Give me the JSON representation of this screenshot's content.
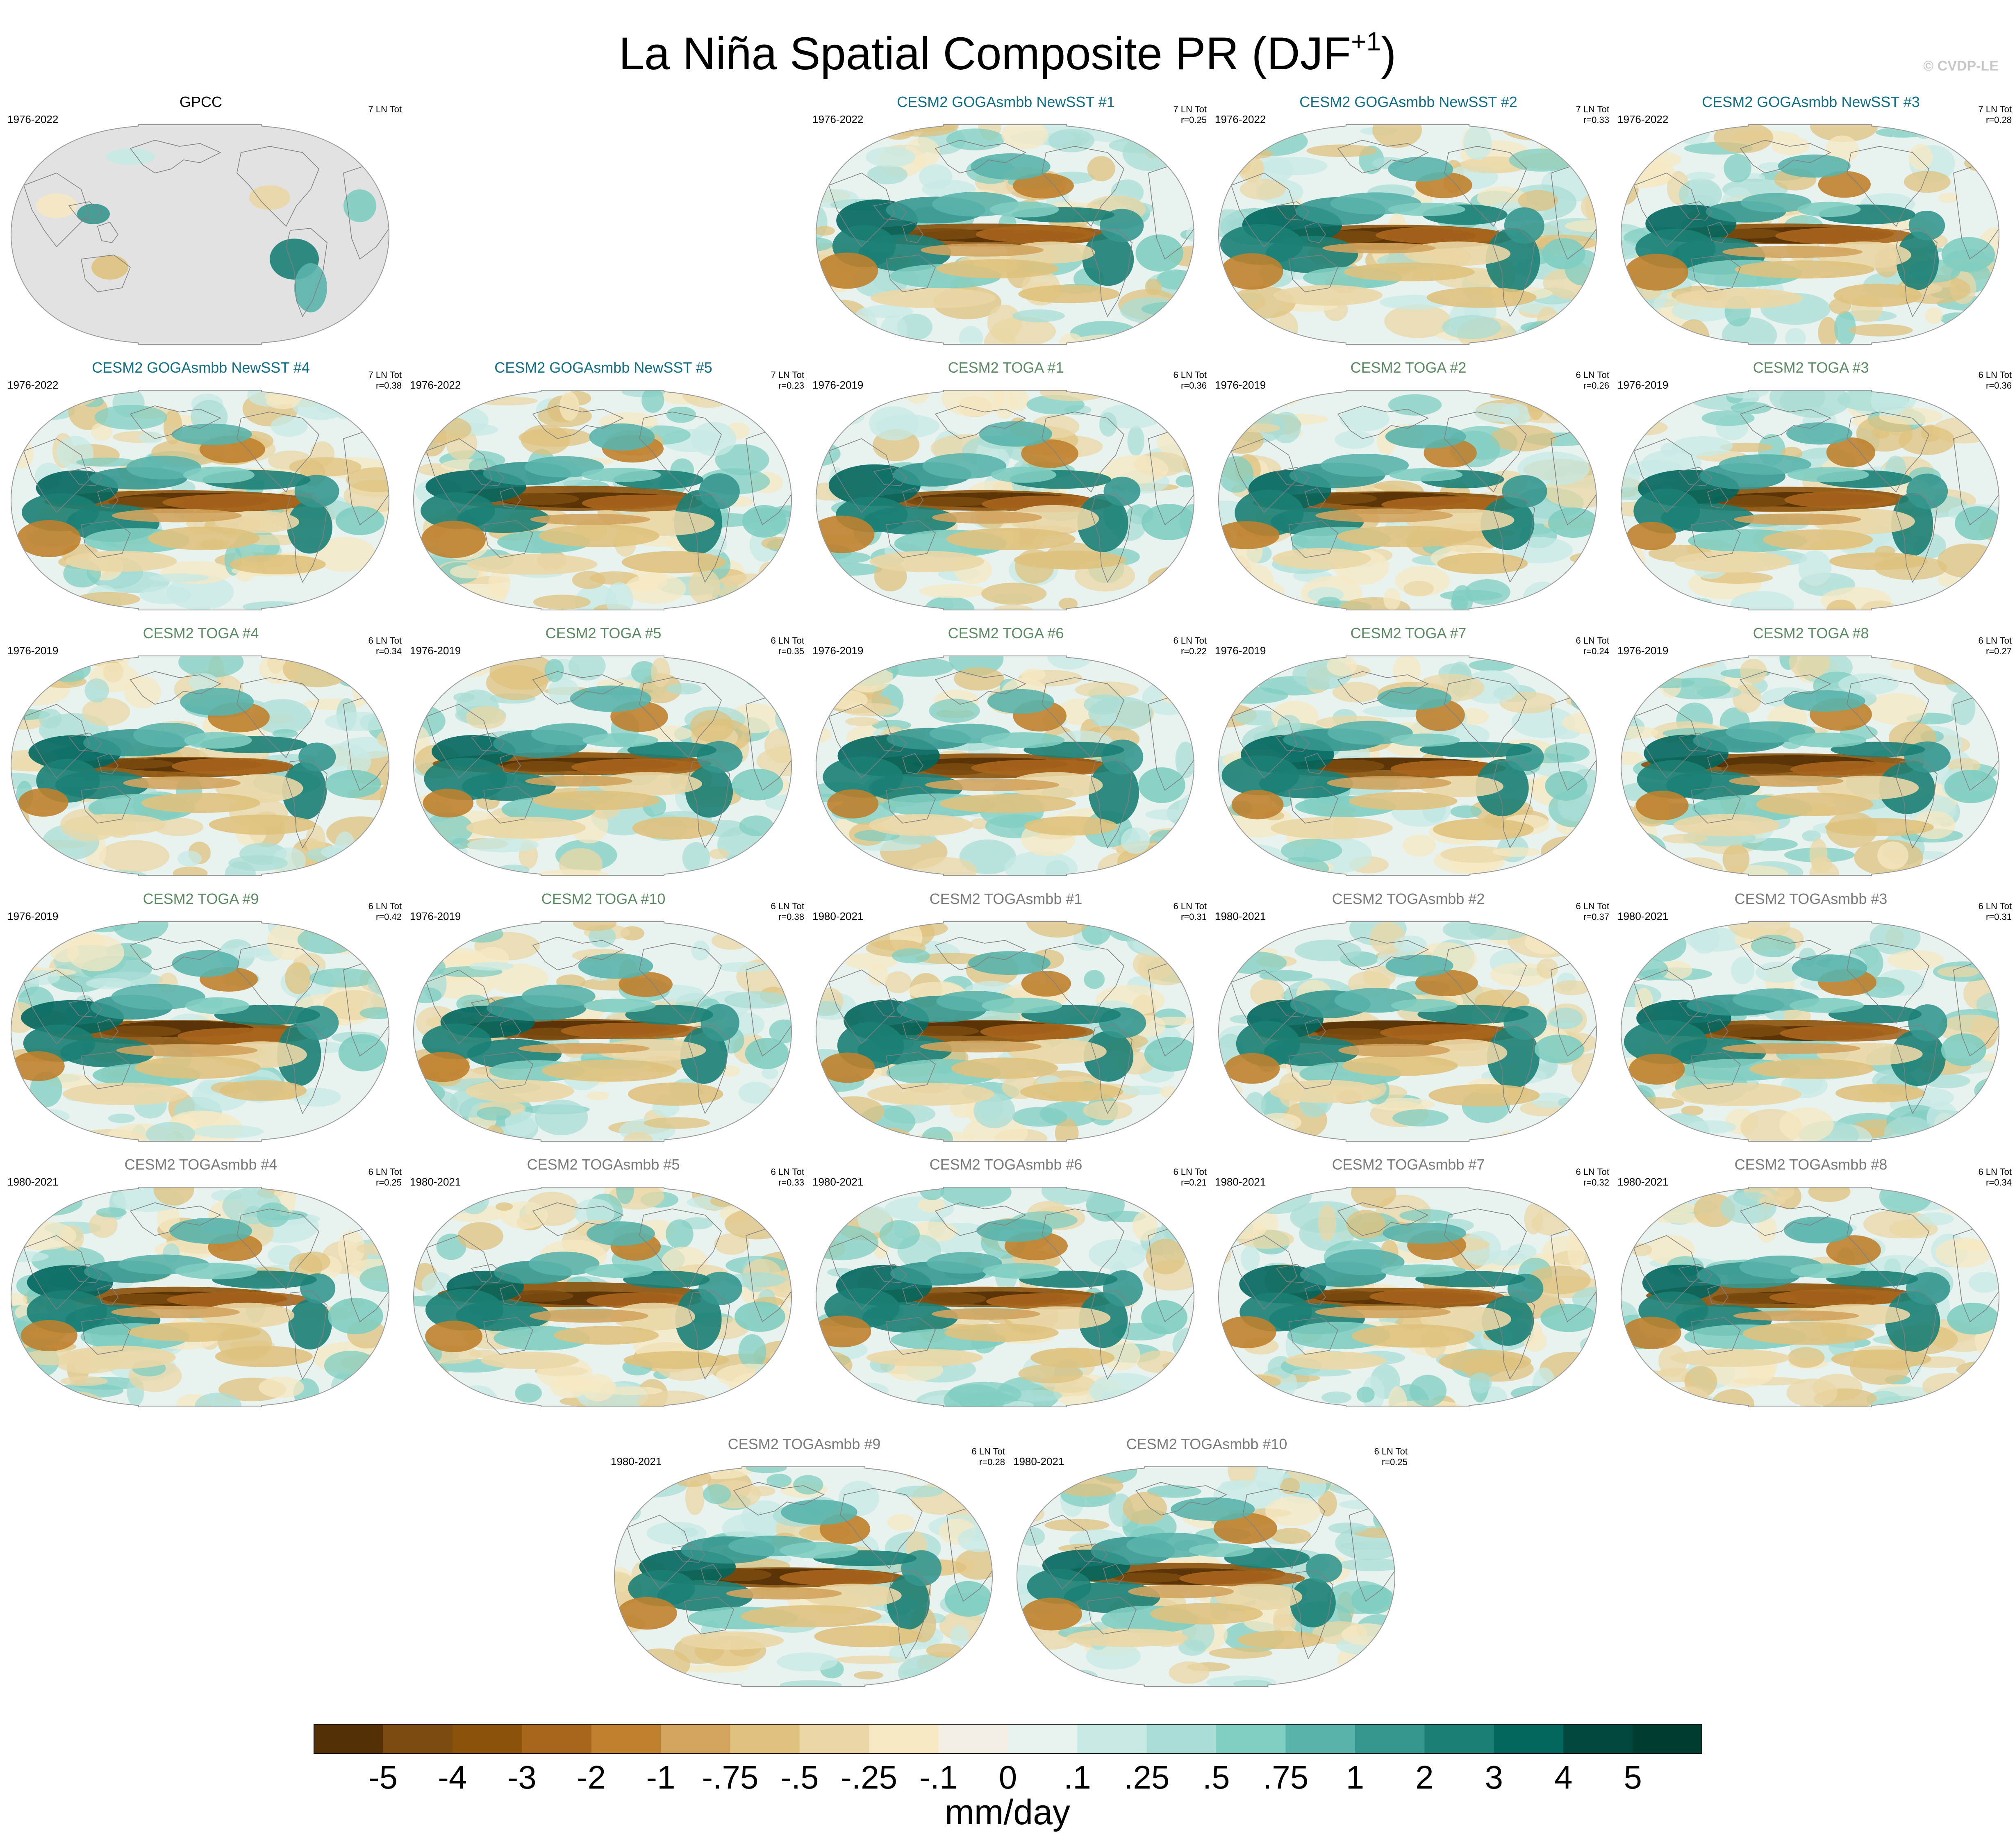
{
  "figure": {
    "title_main": "La Niña Spatial Composite PR (DJF",
    "title_sup": "+1",
    "title_close": ")",
    "credit": "© CVDP-LE"
  },
  "chart_data": {
    "type": "heatmap",
    "variable": "PR",
    "season": "DJF+1",
    "units": "mm/day",
    "projection": "Robinson, Pacific-centered",
    "colorbar": {
      "levels": [
        "-5",
        "-4",
        "-3",
        "-2",
        "-1",
        "-.75",
        "-.5",
        "-.25",
        "-.1",
        "0",
        ".1",
        ".25",
        ".5",
        ".75",
        "1",
        "2",
        "3",
        "4",
        "5"
      ],
      "colors": [
        "#543005",
        "#7a4a10",
        "#8c510a",
        "#a8661d",
        "#bf812d",
        "#d2a45e",
        "#dfc27d",
        "#ebd7a6",
        "#f6e8c3",
        "#f5f0e6",
        "#e8f2ef",
        "#c7eae5",
        "#a9ddd5",
        "#80cdc1",
        "#5ab4ac",
        "#35978f",
        "#1b7f76",
        "#01665e",
        "#00473e",
        "#003c30"
      ]
    },
    "panels": [
      {
        "name": "GPCC",
        "period": "1976-2022",
        "events": "7 LN Tot",
        "r": "",
        "title_color": "#000000",
        "observed": true
      },
      {
        "name": "CESM2 GOGAsmbb NewSST #1",
        "period": "1976-2022",
        "events": "7 LN Tot",
        "r": "r=0.25",
        "title_color": "#0f6e85"
      },
      {
        "name": "CESM2 GOGAsmbb NewSST #2",
        "period": "1976-2022",
        "events": "7 LN Tot",
        "r": "r=0.33",
        "title_color": "#0f6e85"
      },
      {
        "name": "CESM2 GOGAsmbb NewSST #3",
        "period": "1976-2022",
        "events": "7 LN Tot",
        "r": "r=0.28",
        "title_color": "#0f6e85"
      },
      {
        "name": "CESM2 GOGAsmbb NewSST #4",
        "period": "1976-2022",
        "events": "7 LN Tot",
        "r": "r=0.38",
        "title_color": "#0f6e85"
      },
      {
        "name": "CESM2 GOGAsmbb NewSST #5",
        "period": "1976-2022",
        "events": "7 LN Tot",
        "r": "r=0.23",
        "title_color": "#0f6e85"
      },
      {
        "name": "CESM2 TOGA #1",
        "period": "1976-2019",
        "events": "6 LN Tot",
        "r": "r=0.36",
        "title_color": "#5b8a62"
      },
      {
        "name": "CESM2 TOGA #2",
        "period": "1976-2019",
        "events": "6 LN Tot",
        "r": "r=0.26",
        "title_color": "#5b8a62"
      },
      {
        "name": "CESM2 TOGA #3",
        "period": "1976-2019",
        "events": "6 LN Tot",
        "r": "r=0.36",
        "title_color": "#5b8a62"
      },
      {
        "name": "CESM2 TOGA #4",
        "period": "1976-2019",
        "events": "6 LN Tot",
        "r": "r=0.34",
        "title_color": "#5b8a62"
      },
      {
        "name": "CESM2 TOGA #5",
        "period": "1976-2019",
        "events": "6 LN Tot",
        "r": "r=0.35",
        "title_color": "#5b8a62"
      },
      {
        "name": "CESM2 TOGA #6",
        "period": "1976-2019",
        "events": "6 LN Tot",
        "r": "r=0.22",
        "title_color": "#5b8a62"
      },
      {
        "name": "CESM2 TOGA #7",
        "period": "1976-2019",
        "events": "6 LN Tot",
        "r": "r=0.24",
        "title_color": "#5b8a62"
      },
      {
        "name": "CESM2 TOGA #8",
        "period": "1976-2019",
        "events": "6 LN Tot",
        "r": "r=0.27",
        "title_color": "#5b8a62"
      },
      {
        "name": "CESM2 TOGA #9",
        "period": "1976-2019",
        "events": "6 LN Tot",
        "r": "r=0.42",
        "title_color": "#5b8a62"
      },
      {
        "name": "CESM2 TOGA #10",
        "period": "1976-2019",
        "events": "6 LN Tot",
        "r": "r=0.38",
        "title_color": "#5b8a62"
      },
      {
        "name": "CESM2 TOGAsmbb #1",
        "period": "1980-2021",
        "events": "6 LN Tot",
        "r": "r=0.31",
        "title_color": "#7a7a7a"
      },
      {
        "name": "CESM2 TOGAsmbb #2",
        "period": "1980-2021",
        "events": "6 LN Tot",
        "r": "r=0.37",
        "title_color": "#7a7a7a"
      },
      {
        "name": "CESM2 TOGAsmbb #3",
        "period": "1980-2021",
        "events": "6 LN Tot",
        "r": "r=0.31",
        "title_color": "#7a7a7a"
      },
      {
        "name": "CESM2 TOGAsmbb #4",
        "period": "1980-2021",
        "events": "6 LN Tot",
        "r": "r=0.25",
        "title_color": "#7a7a7a"
      },
      {
        "name": "CESM2 TOGAsmbb #5",
        "period": "1980-2021",
        "events": "6 LN Tot",
        "r": "r=0.33",
        "title_color": "#7a7a7a"
      },
      {
        "name": "CESM2 TOGAsmbb #6",
        "period": "1980-2021",
        "events": "6 LN Tot",
        "r": "r=0.21",
        "title_color": "#7a7a7a"
      },
      {
        "name": "CESM2 TOGAsmbb #7",
        "period": "1980-2021",
        "events": "6 LN Tot",
        "r": "r=0.32",
        "title_color": "#7a7a7a"
      },
      {
        "name": "CESM2 TOGAsmbb #8",
        "period": "1980-2021",
        "events": "6 LN Tot",
        "r": "r=0.34",
        "title_color": "#7a7a7a"
      },
      {
        "name": "CESM2 TOGAsmbb #9",
        "period": "1980-2021",
        "events": "6 LN Tot",
        "r": "r=0.28",
        "title_color": "#7a7a7a"
      },
      {
        "name": "CESM2 TOGAsmbb #10",
        "period": "1980-2021",
        "events": "6 LN Tot",
        "r": "r=0.25",
        "title_color": "#7a7a7a"
      }
    ]
  }
}
